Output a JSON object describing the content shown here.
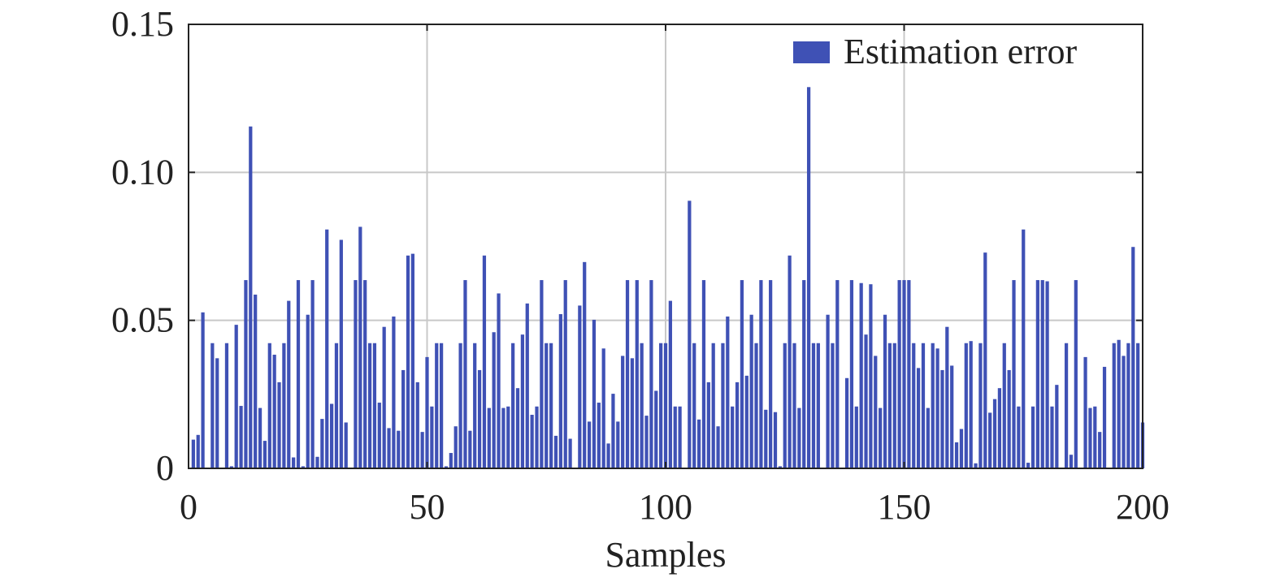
{
  "chart_data": {
    "type": "bar",
    "title": "",
    "xlabel": "Samples",
    "ylabel": "",
    "xlim": [
      0,
      200
    ],
    "ylim": [
      0,
      0.15
    ],
    "xticks": [
      0,
      50,
      100,
      150,
      200
    ],
    "xtick_labels": [
      "0",
      "50",
      "100",
      "150",
      "200"
    ],
    "yticks": [
      0,
      0.05,
      0.1,
      0.15
    ],
    "ytick_labels": [
      "0",
      "0.05",
      "0.10",
      "0.15"
    ],
    "grid": true,
    "legend_position": "top-right",
    "series": [
      {
        "name": "Estimation error",
        "color": "#3f51b5",
        "x": [
          1,
          2,
          3,
          4,
          5,
          6,
          7,
          8,
          9,
          10,
          11,
          12,
          13,
          14,
          15,
          16,
          17,
          18,
          19,
          20,
          21,
          22,
          23,
          24,
          25,
          26,
          27,
          28,
          29,
          30,
          31,
          32,
          33,
          34,
          35,
          36,
          37,
          38,
          39,
          40,
          41,
          42,
          43,
          44,
          45,
          46,
          47,
          48,
          49,
          50,
          51,
          52,
          53,
          54,
          55,
          56,
          57,
          58,
          59,
          60,
          61,
          62,
          63,
          64,
          65,
          66,
          67,
          68,
          69,
          70,
          71,
          72,
          73,
          74,
          75,
          76,
          77,
          78,
          79,
          80,
          81,
          82,
          83,
          84,
          85,
          86,
          87,
          88,
          89,
          90,
          91,
          92,
          93,
          94,
          95,
          96,
          97,
          98,
          99,
          100,
          101,
          102,
          103,
          104,
          105,
          106,
          107,
          108,
          109,
          110,
          111,
          112,
          113,
          114,
          115,
          116,
          117,
          118,
          119,
          120,
          121,
          122,
          123,
          124,
          125,
          126,
          127,
          128,
          129,
          130,
          131,
          132,
          133,
          134,
          135,
          136,
          137,
          138,
          139,
          140,
          141,
          142,
          143,
          144,
          145,
          146,
          147,
          148,
          149,
          150,
          151,
          152,
          153,
          154,
          155,
          156,
          157,
          158,
          159,
          160,
          161,
          162,
          163,
          164,
          165,
          166,
          167,
          168,
          169,
          170,
          171,
          172,
          173,
          174,
          175,
          176,
          177,
          178,
          179,
          180,
          181,
          182,
          183,
          184,
          185,
          186,
          187,
          188,
          189,
          190,
          191,
          192,
          193,
          194,
          195,
          196,
          197,
          198,
          199,
          200
        ],
        "values": [
          0.0097,
          0.0113,
          0.0527,
          0,
          0.0423,
          0.0372,
          0,
          0.0423,
          0.0007,
          0.0485,
          0.0211,
          0.0636,
          0.1155,
          0.0587,
          0.0204,
          0.0093,
          0.0423,
          0.0384,
          0.0291,
          0.0423,
          0.0566,
          0.0037,
          0.0636,
          0.0007,
          0.0519,
          0.0636,
          0.0039,
          0.0167,
          0.0807,
          0.0218,
          0.0423,
          0.0772,
          0.0155,
          0,
          0.0636,
          0.0816,
          0.0636,
          0.0423,
          0.0423,
          0.0222,
          0.0478,
          0.0136,
          0.0513,
          0.0127,
          0.0332,
          0.0719,
          0.0725,
          0.0291,
          0.0123,
          0.0376,
          0.0209,
          0.0423,
          0.0423,
          0.0007,
          0.0052,
          0.0142,
          0.0423,
          0.0636,
          0.0127,
          0.0423,
          0.0332,
          0.0719,
          0.0204,
          0.046,
          0.0591,
          0.0204,
          0.0209,
          0.0423,
          0.0271,
          0.0452,
          0.0557,
          0.0181,
          0.0209,
          0.0636,
          0.0423,
          0.0423,
          0.011,
          0.0521,
          0.0636,
          0.01,
          0,
          0.055,
          0.0697,
          0.0158,
          0.0502,
          0.0222,
          0.0405,
          0.0084,
          0.0252,
          0.0158,
          0.038,
          0.0636,
          0.0372,
          0.0636,
          0.0423,
          0.0178,
          0.0636,
          0.0262,
          0.0423,
          0.0423,
          0.0566,
          0.0209,
          0.0209,
          0,
          0.0904,
          0.0423,
          0.0165,
          0.0636,
          0.0291,
          0.0423,
          0.0142,
          0.0423,
          0.0513,
          0.0209,
          0.0291,
          0.0636,
          0.0313,
          0.0519,
          0.0423,
          0.0636,
          0.0198,
          0.0636,
          0.019,
          0.0007,
          0.0423,
          0.0719,
          0.0423,
          0.0204,
          0.0636,
          0.1288,
          0.0423,
          0.0423,
          0,
          0.0519,
          0.0423,
          0.0636,
          0,
          0.0305,
          0.0636,
          0.0209,
          0.0626,
          0.0452,
          0.0622,
          0.038,
          0.0204,
          0.0519,
          0.0423,
          0.0423,
          0.0636,
          0.0636,
          0.0636,
          0.0423,
          0.0339,
          0.0423,
          0.0204,
          0.0423,
          0.0405,
          0.0332,
          0.0478,
          0.0347,
          0.0088,
          0.0133,
          0.0423,
          0.043,
          0.0017,
          0.0423,
          0.0729,
          0.0188,
          0.0234,
          0.0271,
          0.0423,
          0.0332,
          0.0636,
          0.0209,
          0.0807,
          0.0019,
          0.0209,
          0.0636,
          0.0636,
          0.0632,
          0.0209,
          0.0282,
          0,
          0.0423,
          0.0046,
          0.0636,
          0,
          0.0376,
          0.0204,
          0.0209,
          0.0123,
          0.0343,
          0,
          0.0423,
          0.0434,
          0.038,
          0.0423,
          0.0748,
          0.0423,
          0.0155
        ]
      }
    ]
  }
}
